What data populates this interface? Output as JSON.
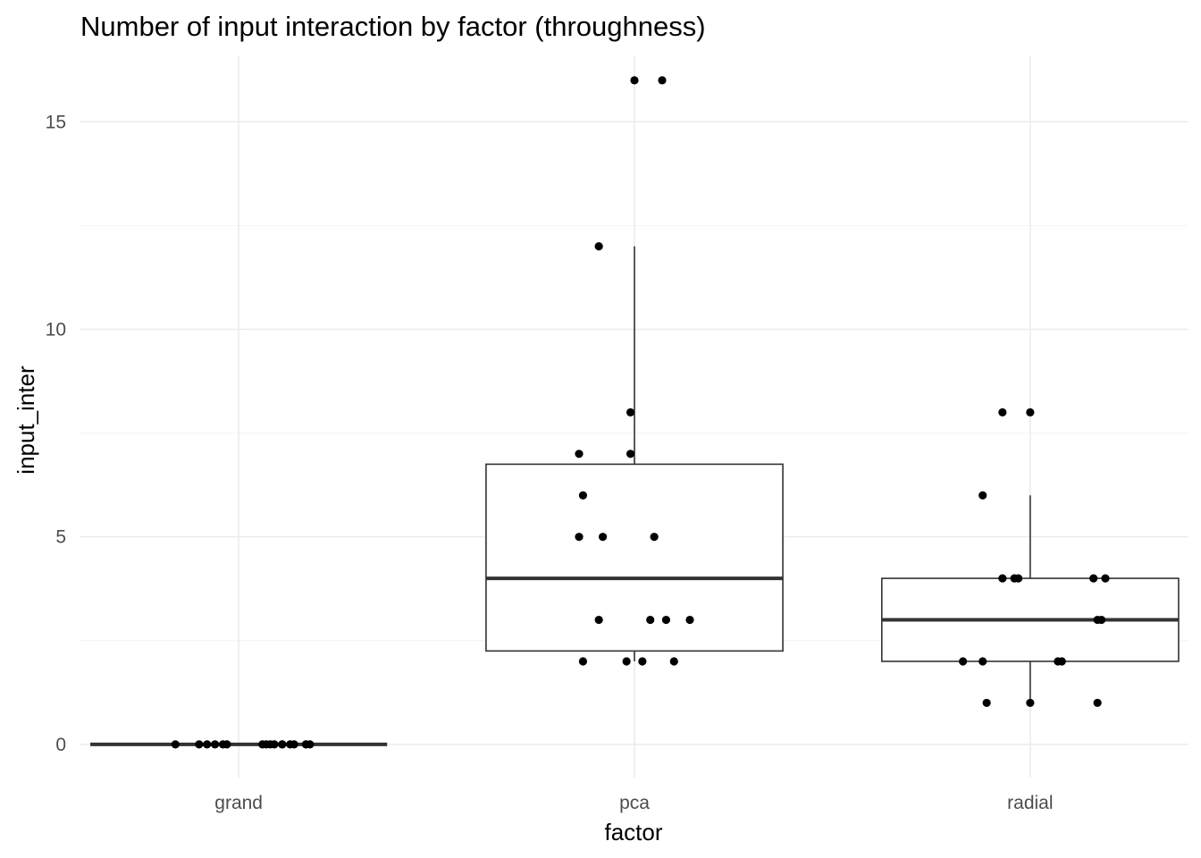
{
  "chart_data": {
    "type": "box",
    "title": "Number of input interaction by factor (throughness)",
    "xlabel": "factor",
    "ylabel": "input_inter",
    "categories": [
      "grand",
      "pca",
      "radial"
    ],
    "ylim": [
      -0.8,
      16.6
    ],
    "yticks": [
      0,
      5,
      10,
      15
    ],
    "grid": true,
    "legend": "none",
    "box_color": "#333333",
    "point_color": "#000000",
    "boxes": [
      {
        "category": "grand",
        "min": 0,
        "q1": 0,
        "median": 0,
        "q3": 0,
        "max": 0
      },
      {
        "category": "pca",
        "min": 2,
        "q1": 2.25,
        "median": 4,
        "q3": 6.75,
        "max": 12
      },
      {
        "category": "radial",
        "min": 1,
        "q1": 2,
        "median": 3,
        "q3": 4,
        "max": 6
      }
    ],
    "points": [
      {
        "category": "grand",
        "values": [
          0,
          0,
          0,
          0,
          0,
          0,
          0,
          0,
          0,
          0,
          0,
          0,
          0,
          0,
          0,
          0,
          0
        ],
        "jitter": [
          -0.16,
          -0.1,
          -0.08,
          -0.06,
          -0.04,
          -0.03,
          0.06,
          0.07,
          0.08,
          0.09,
          0.11,
          0.11,
          0.13,
          0.14,
          0.17,
          0.17,
          0.18
        ]
      },
      {
        "category": "pca",
        "values": [
          16,
          16,
          12,
          8,
          7,
          7,
          6,
          5,
          5,
          5,
          3,
          3,
          3,
          3,
          2,
          2,
          2,
          2
        ],
        "jitter": [
          0.0,
          0.07,
          -0.09,
          -0.01,
          -0.14,
          -0.01,
          -0.13,
          -0.14,
          -0.08,
          0.05,
          -0.09,
          0.04,
          0.08,
          0.14,
          -0.13,
          -0.02,
          0.02,
          0.1
        ]
      },
      {
        "category": "radial",
        "values": [
          8,
          8,
          6,
          4,
          4,
          4,
          4,
          4,
          3,
          3,
          2,
          2,
          2,
          2,
          1,
          1,
          1
        ],
        "jitter": [
          -0.07,
          0.0,
          -0.12,
          -0.07,
          -0.04,
          -0.03,
          0.16,
          0.19,
          0.17,
          0.18,
          -0.17,
          -0.12,
          0.07,
          0.08,
          -0.11,
          0.0,
          0.17
        ]
      }
    ]
  }
}
